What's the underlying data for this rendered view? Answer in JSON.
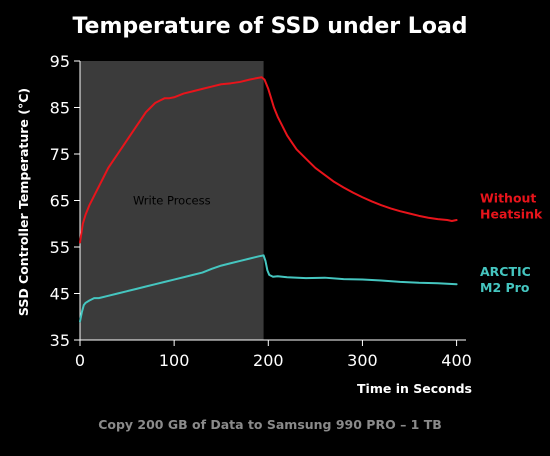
{
  "chart_data": {
    "type": "line",
    "title": "Temperature of SSD under Load",
    "xlabel": "Time in Seconds",
    "ylabel": "SSD Controller Temperature (°C)",
    "caption": "Copy 200 GB of Data to Samsung 990 PRO  – 1 TB",
    "xlim": [
      0,
      410
    ],
    "ylim": [
      35,
      95
    ],
    "x_ticks": [
      0,
      100,
      200,
      300,
      400
    ],
    "y_ticks": [
      35,
      45,
      55,
      65,
      75,
      85,
      95
    ],
    "x_tick_labels": [
      "0",
      "100",
      "200",
      "300",
      "400"
    ],
    "y_tick_labels": [
      "35",
      "45",
      "55",
      "65",
      "75",
      "85",
      "95"
    ],
    "grid": false,
    "legend": "right, labels beside line ends",
    "shaded_region": {
      "x_start": 0,
      "x_end": 195,
      "label": "Write Process",
      "color": "#3b3b3b"
    },
    "series": [
      {
        "name": "Without Heatsink",
        "color": "#e8141b",
        "x": [
          0,
          3,
          6,
          10,
          15,
          20,
          25,
          30,
          35,
          40,
          45,
          50,
          55,
          60,
          65,
          70,
          75,
          80,
          85,
          90,
          95,
          100,
          110,
          120,
          130,
          140,
          150,
          160,
          170,
          180,
          185,
          190,
          193,
          196,
          198,
          200,
          203,
          206,
          210,
          215,
          220,
          225,
          230,
          240,
          250,
          260,
          270,
          280,
          290,
          300,
          310,
          320,
          330,
          340,
          350,
          360,
          370,
          380,
          390,
          395,
          400
        ],
        "values": [
          56,
          60,
          62,
          64,
          66,
          68,
          70,
          72,
          73.5,
          75,
          76.5,
          78,
          79.5,
          81,
          82.5,
          84,
          85,
          86,
          86.5,
          87,
          87,
          87.2,
          88,
          88.5,
          89,
          89.5,
          90,
          90.2,
          90.5,
          91,
          91.2,
          91.4,
          91.5,
          91,
          90,
          89,
          87,
          85,
          83,
          81,
          79,
          77.5,
          76,
          74,
          72,
          70.5,
          69,
          67.8,
          66.7,
          65.7,
          64.8,
          64,
          63.3,
          62.7,
          62.2,
          61.7,
          61.3,
          61,
          60.8,
          60.6,
          60.8
        ]
      },
      {
        "name": "ARCTIC M2 Pro",
        "color": "#45c6c0",
        "x": [
          0,
          2,
          4,
          6,
          10,
          15,
          20,
          30,
          40,
          50,
          60,
          70,
          80,
          90,
          100,
          110,
          120,
          130,
          140,
          150,
          160,
          170,
          180,
          190,
          195,
          197,
          199,
          201,
          205,
          210,
          220,
          240,
          260,
          280,
          300,
          320,
          340,
          360,
          380,
          400
        ],
        "values": [
          39,
          41,
          42.5,
          43,
          43.5,
          44,
          44,
          44.5,
          45,
          45.5,
          46,
          46.5,
          47,
          47.5,
          48,
          48.5,
          49,
          49.5,
          50.3,
          51,
          51.5,
          52,
          52.5,
          53,
          53.2,
          52,
          50,
          49,
          48.6,
          48.7,
          48.5,
          48.3,
          48.4,
          48.1,
          48,
          47.8,
          47.5,
          47.3,
          47.2,
          47
        ]
      }
    ],
    "legend_entries": [
      {
        "series": 0,
        "lines": [
          "Without",
          "Heatsink"
        ]
      },
      {
        "series": 1,
        "lines": [
          "ARCTIC",
          "M2 Pro"
        ]
      }
    ]
  }
}
